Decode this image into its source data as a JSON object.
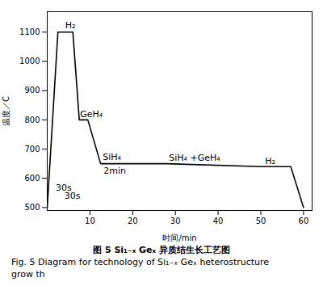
{
  "chart_data": {
    "type": "line",
    "x": [
      0,
      2.5,
      6.0,
      7.5,
      9.5,
      12.5,
      28.0,
      50.0,
      57.0,
      60.0
    ],
    "values": [
      500,
      1100,
      1100,
      800,
      800,
      650,
      650,
      640,
      640,
      500
    ],
    "color": "#000000",
    "xlabel": "时间/min",
    "ylabel": "温度／C",
    "xlim": [
      0,
      62
    ],
    "ylim": [
      490,
      1170
    ],
    "xticks": [
      10,
      20,
      30,
      40,
      50,
      60
    ],
    "yticks": [
      500,
      600,
      700,
      800,
      900,
      1000,
      1100
    ],
    "annotations": [
      {
        "text": "H₂",
        "x": 4.2,
        "y": 1112
      },
      {
        "text": "GeH₄",
        "x": 7.7,
        "y": 810
      },
      {
        "text": "SiH₄",
        "x": 13.0,
        "y": 662
      },
      {
        "text": "SiH₄ +GeH₄",
        "x": 28.5,
        "y": 660
      },
      {
        "text": "H₂",
        "x": 51.0,
        "y": 650
      },
      {
        "text": "30s",
        "x": 2.0,
        "y": 558
      },
      {
        "text": "30s",
        "x": 4.0,
        "y": 530
      },
      {
        "text": "2min",
        "x": 13.2,
        "y": 615
      }
    ],
    "caption": [
      "图 5  Si₁₋ₓ Geₓ 异质结生长工艺图",
      "Fig. 5  Diagram for technology of Si₁₋ₓ Geₓ heterostructure",
      "grow th"
    ]
  }
}
